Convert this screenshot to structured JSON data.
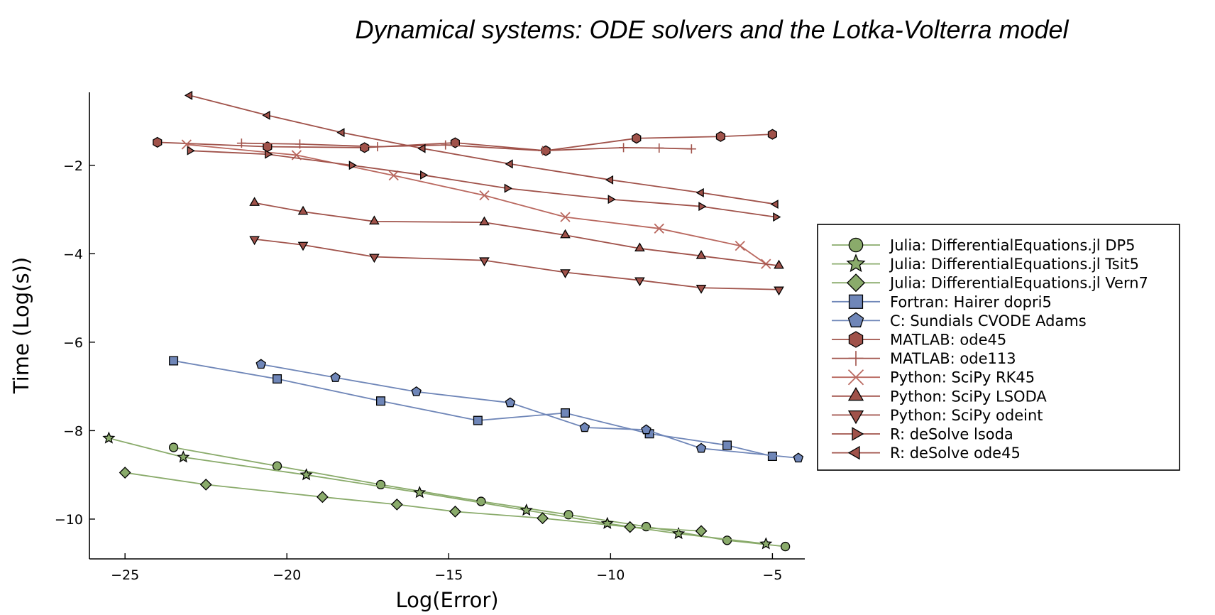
{
  "chart_data": {
    "type": "line",
    "title": "Dynamical systems: ODE solvers and the Lotka-Volterra model",
    "xlabel": "Log(Error)",
    "ylabel": "Time (Log(s))",
    "xlim": [
      -26.1,
      -4.0
    ],
    "ylim": [
      -10.9,
      -0.35
    ],
    "xticks": [
      -25,
      -20,
      -15,
      -10,
      -5
    ],
    "yticks": [
      -10,
      -8,
      -6,
      -4,
      -2
    ],
    "xtick_labels": [
      "−25",
      "−20",
      "−15",
      "−10",
      "−5"
    ],
    "ytick_labels": [
      "−10",
      "−8",
      "−6",
      "−4",
      "−2"
    ],
    "grid": false,
    "legend_position": "right",
    "series": [
      {
        "name": "Julia: DifferentialEquations.jl DP5",
        "color": "#8aab6b",
        "marker": "circle",
        "x": [
          -23.5,
          -20.3,
          -17.1,
          -14.0,
          -11.3,
          -8.9,
          -6.4,
          -4.6
        ],
        "y": [
          -8.38,
          -8.8,
          -9.22,
          -9.6,
          -9.9,
          -10.17,
          -10.48,
          -10.62
        ]
      },
      {
        "name": "Julia: DifferentialEquations.jl Tsit5",
        "color": "#8aab6b",
        "marker": "star",
        "x": [
          -25.5,
          -23.2,
          -19.4,
          -15.9,
          -12.6,
          -10.1,
          -7.9,
          -5.2
        ],
        "y": [
          -8.17,
          -8.6,
          -9.0,
          -9.4,
          -9.8,
          -10.1,
          -10.33,
          -10.56
        ]
      },
      {
        "name": "Julia: DifferentialEquations.jl Vern7",
        "color": "#8aab6b",
        "marker": "diamond",
        "x": [
          -25.0,
          -22.5,
          -18.9,
          -16.6,
          -14.8,
          -12.1,
          -9.4,
          -7.2
        ],
        "y": [
          -8.95,
          -9.22,
          -9.5,
          -9.67,
          -9.83,
          -9.98,
          -10.18,
          -10.27
        ]
      },
      {
        "name": "Fortran: Hairer dopri5",
        "color": "#6f86b8",
        "marker": "square",
        "x": [
          -23.5,
          -20.3,
          -17.1,
          -14.1,
          -11.4,
          -8.8,
          -6.4,
          -5.0
        ],
        "y": [
          -6.42,
          -6.83,
          -7.33,
          -7.77,
          -7.6,
          -8.07,
          -8.33,
          -8.58
        ]
      },
      {
        "name": "C: Sundials CVODE Adams",
        "color": "#6f86b8",
        "marker": "pentagon",
        "x": [
          -20.8,
          -18.5,
          -16.0,
          -13.1,
          -10.8,
          -8.9,
          -7.2,
          -4.2
        ],
        "y": [
          -6.5,
          -6.8,
          -7.12,
          -7.37,
          -7.93,
          -7.98,
          -8.4,
          -8.62
        ]
      },
      {
        "name": "MATLAB: ode45",
        "color": "#a0524a",
        "marker": "hexagon",
        "x": [
          -24.0,
          -20.6,
          -17.6,
          -14.8,
          -12.0,
          -9.2,
          -6.6,
          -5.0
        ],
        "y": [
          -1.48,
          -1.58,
          -1.6,
          -1.49,
          -1.67,
          -1.39,
          -1.35,
          -1.3
        ]
      },
      {
        "name": "MATLAB: ode113",
        "color": "#a0524a",
        "marker": "plus",
        "x": [
          -21.4,
          -19.6,
          -17.2,
          -15.1,
          -12.1,
          -9.6,
          -8.5,
          -7.5
        ],
        "y": [
          -1.5,
          -1.52,
          -1.58,
          -1.54,
          -1.67,
          -1.6,
          -1.61,
          -1.63
        ]
      },
      {
        "name": "Python: SciPy RK45",
        "color": "#b9685f",
        "marker": "xcross",
        "x": [
          -23.1,
          -19.7,
          -16.7,
          -13.9,
          -11.4,
          -8.5,
          -6.0,
          -5.2
        ],
        "y": [
          -1.53,
          -1.77,
          -2.23,
          -2.68,
          -3.17,
          -3.43,
          -3.82,
          -4.23
        ]
      },
      {
        "name": "Python: SciPy LSODA",
        "color": "#a0524a",
        "marker": "triangle-up",
        "x": [
          -21.0,
          -19.5,
          -17.3,
          -13.9,
          -11.4,
          -9.1,
          -7.2,
          -4.8
        ],
        "y": [
          -2.85,
          -3.05,
          -3.27,
          -3.29,
          -3.58,
          -3.88,
          -4.05,
          -4.27
        ]
      },
      {
        "name": "Python: SciPy odeint",
        "color": "#a0524a",
        "marker": "triangle-down",
        "x": [
          -21.0,
          -19.5,
          -17.3,
          -13.9,
          -11.4,
          -9.1,
          -7.2,
          -4.8
        ],
        "y": [
          -3.67,
          -3.8,
          -4.07,
          -4.15,
          -4.42,
          -4.6,
          -4.77,
          -4.81
        ]
      },
      {
        "name": "R: deSolve lsoda",
        "color": "#a0524a",
        "marker": "triangle-right",
        "x": [
          -23.0,
          -20.6,
          -18.0,
          -15.8,
          -13.2,
          -10.0,
          -7.2,
          -4.9
        ],
        "y": [
          -1.67,
          -1.75,
          -2.0,
          -2.22,
          -2.52,
          -2.77,
          -2.93,
          -3.17
        ]
      },
      {
        "name": "R: deSolve ode45",
        "color": "#a0524a",
        "marker": "triangle-left",
        "x": [
          -23.0,
          -20.6,
          -18.3,
          -15.8,
          -13.1,
          -10.0,
          -7.2,
          -4.9
        ],
        "y": [
          -0.42,
          -0.87,
          -1.26,
          -1.62,
          -1.97,
          -2.33,
          -2.62,
          -2.88
        ]
      }
    ]
  }
}
